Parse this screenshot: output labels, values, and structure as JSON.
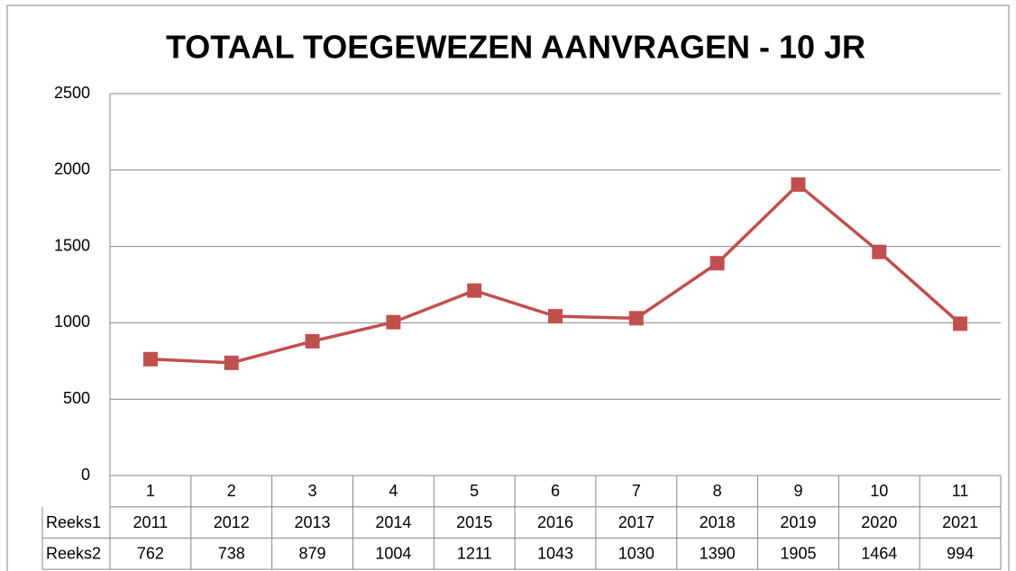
{
  "chart_data": {
    "type": "line",
    "title": "TOTAAL TOEGEWEZEN AANVRAGEN - 10 JR",
    "categories": [
      1,
      2,
      3,
      4,
      5,
      6,
      7,
      8,
      9,
      10,
      11
    ],
    "series": [
      {
        "name": "Reeks1",
        "values": [
          2011,
          2012,
          2013,
          2014,
          2015,
          2016,
          2017,
          2018,
          2019,
          2020,
          2021
        ]
      },
      {
        "name": "Reeks2",
        "color": "#c0504d",
        "values": [
          762,
          738,
          879,
          1004,
          1211,
          1043,
          1030,
          1390,
          1905,
          1464,
          994
        ]
      }
    ],
    "ylim": [
      0,
      2500
    ],
    "yticks": [
      0,
      500,
      1000,
      1500,
      2000,
      2500
    ],
    "grid": true
  }
}
